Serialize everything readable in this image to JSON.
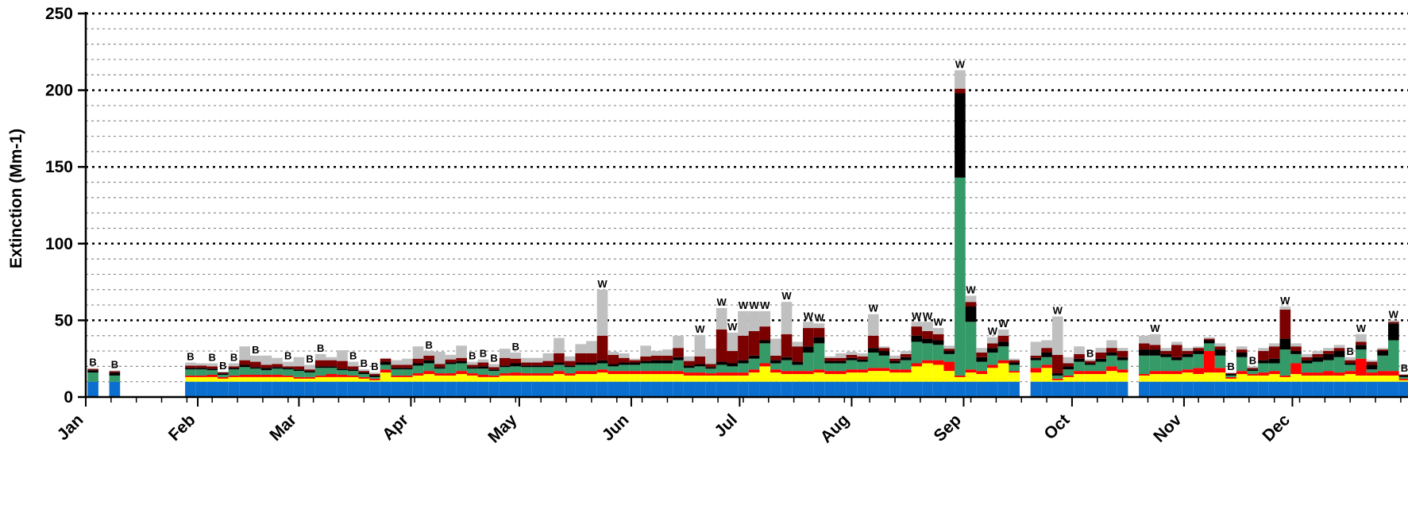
{
  "chart_data": {
    "type": "bar",
    "stacked": true,
    "title": "",
    "xlabel": "",
    "ylabel": "Extinction (Mm-1)",
    "ylim": [
      0,
      250
    ],
    "yticks": [
      0,
      50,
      100,
      150,
      200,
      250
    ],
    "grid": {
      "major_y": true,
      "minor_y_step": 10,
      "style": "dotted"
    },
    "legend": "none",
    "months": [
      "Jan",
      "Feb",
      "Mar",
      "Apr",
      "May",
      "Jun",
      "Jul",
      "Aug",
      "Sep",
      "Oct",
      "Nov",
      "Dec"
    ],
    "month_start_days": [
      1,
      32,
      60,
      91,
      121,
      152,
      182,
      213,
      244,
      274,
      305,
      335
    ],
    "sample_interval_days": 3,
    "series_colors": {
      "rayleigh": "#0a6fcf",
      "sulfate": "#ffff00",
      "nitrate": "#ff0000",
      "organic": "#349a67",
      "elemental_carbon": "#000000",
      "soil": "#7b0000",
      "coarse": "#c0c0c0"
    },
    "samples": [
      {
        "day": 3,
        "v": [
          10,
          0,
          0,
          6,
          1.5,
          0.8,
          0.5
        ],
        "flag": "B"
      },
      {
        "day": 9,
        "v": [
          10,
          0,
          0,
          4,
          2,
          0.8,
          0.5
        ],
        "flag": "B"
      },
      {
        "day": 30,
        "v": [
          10,
          3,
          1,
          4,
          1,
          1.5,
          2
        ],
        "flag": "B"
      },
      {
        "day": 33,
        "v": [
          10,
          3,
          1,
          4,
          1,
          1.5,
          1.5
        ]
      },
      {
        "day": 36,
        "v": [
          10,
          3,
          1.5,
          3,
          1,
          1.5,
          2
        ],
        "flag": "B"
      },
      {
        "day": 39,
        "v": [
          10,
          2,
          1,
          1.5,
          0.8,
          0.8,
          0.5
        ],
        "flag": "B"
      },
      {
        "day": 42,
        "v": [
          10,
          3,
          1,
          4,
          1,
          1,
          2
        ],
        "flag": "B"
      },
      {
        "day": 45,
        "v": [
          10,
          3,
          1.5,
          5,
          1.5,
          3,
          9
        ]
      },
      {
        "day": 48,
        "v": [
          10,
          3,
          1.5,
          4,
          1,
          3.5,
          4
        ],
        "flag": "B"
      },
      {
        "day": 51,
        "v": [
          10,
          3,
          1.5,
          3,
          1.5,
          2,
          6
        ]
      },
      {
        "day": 54,
        "v": [
          10,
          3,
          1.5,
          4,
          1,
          2,
          4
        ]
      },
      {
        "day": 57,
        "v": [
          10,
          3,
          1,
          4,
          1,
          1,
          3
        ],
        "flag": "B"
      },
      {
        "day": 60,
        "v": [
          10,
          2,
          1,
          4,
          1,
          2,
          6
        ]
      },
      {
        "day": 63,
        "v": [
          10,
          2,
          1,
          3,
          1,
          1,
          3
        ],
        "flag": "B"
      },
      {
        "day": 66,
        "v": [
          10,
          3,
          1,
          5,
          1,
          4,
          4
        ],
        "flag": "B"
      },
      {
        "day": 69,
        "v": [
          10,
          3,
          2,
          4,
          1,
          4,
          2
        ]
      },
      {
        "day": 72,
        "v": [
          10,
          3,
          1.5,
          3,
          1,
          5,
          7
        ]
      },
      {
        "day": 75,
        "v": [
          10,
          3,
          1,
          3,
          1,
          2,
          3
        ],
        "flag": "B"
      },
      {
        "day": 78,
        "v": [
          10,
          2,
          1,
          2,
          1,
          1,
          1
        ],
        "flag": "B"
      },
      {
        "day": 81,
        "v": [
          10,
          1,
          1,
          1,
          1,
          1,
          1
        ],
        "flag": "B"
      },
      {
        "day": 84,
        "v": [
          10,
          6,
          2,
          3,
          2,
          2,
          0.5
        ]
      },
      {
        "day": 87,
        "v": [
          10,
          3,
          1,
          4,
          1,
          2,
          3
        ]
      },
      {
        "day": 90,
        "v": [
          10,
          3,
          1,
          4,
          1,
          2,
          4
        ]
      },
      {
        "day": 93,
        "v": [
          10,
          4,
          1.5,
          5,
          1.5,
          3,
          8
        ]
      },
      {
        "day": 96,
        "v": [
          10,
          5,
          2,
          5,
          2,
          3,
          3
        ],
        "flag": "B"
      },
      {
        "day": 99,
        "v": [
          10,
          4,
          1.5,
          3,
          1,
          2,
          8
        ]
      },
      {
        "day": 102,
        "v": [
          10,
          4,
          1.5,
          6,
          1,
          2,
          3
        ]
      },
      {
        "day": 105,
        "v": [
          10,
          5,
          2,
          5,
          1.5,
          2,
          8
        ]
      },
      {
        "day": 108,
        "v": [
          10,
          4,
          1.5,
          3,
          1,
          1.5,
          2
        ],
        "flag": "B"
      },
      {
        "day": 111,
        "v": [
          10,
          3,
          1.5,
          4,
          1.5,
          2.5,
          2
        ],
        "flag": "B"
      },
      {
        "day": 114,
        "v": [
          10,
          3,
          1,
          3,
          1,
          1.5,
          2
        ],
        "flag": "B"
      },
      {
        "day": 117,
        "v": [
          10,
          4,
          1.5,
          4,
          1,
          5,
          6
        ]
      },
      {
        "day": 120,
        "v": [
          10,
          4,
          2,
          4,
          2,
          3,
          4
        ],
        "flag": "B"
      },
      {
        "day": 123,
        "v": [
          10,
          4,
          1.5,
          4,
          1,
          2,
          3
        ]
      },
      {
        "day": 126,
        "v": [
          10,
          4,
          1.5,
          4,
          1,
          2,
          3
        ]
      },
      {
        "day": 129,
        "v": [
          10,
          4,
          1.5,
          4,
          1,
          3,
          5
        ]
      },
      {
        "day": 132,
        "v": [
          10,
          5,
          2,
          4,
          1.5,
          6,
          10
        ]
      },
      {
        "day": 135,
        "v": [
          10,
          4,
          1.5,
          4,
          1,
          3,
          3
        ]
      },
      {
        "day": 138,
        "v": [
          10,
          5,
          2,
          4,
          1.5,
          6,
          6
        ]
      },
      {
        "day": 141,
        "v": [
          10,
          5,
          2,
          4,
          1.5,
          6,
          8
        ]
      },
      {
        "day": 144,
        "v": [
          10,
          6,
          2,
          4,
          2,
          16,
          30
        ],
        "flag": "W"
      },
      {
        "day": 147,
        "v": [
          10,
          5,
          2,
          3,
          1.5,
          6,
          2
        ]
      },
      {
        "day": 150,
        "v": [
          10,
          5,
          2,
          4,
          1.5,
          3,
          3
        ]
      },
      {
        "day": 153,
        "v": [
          10,
          5,
          2,
          4,
          1.5,
          1.5,
          1
        ]
      },
      {
        "day": 156,
        "v": [
          10,
          5,
          2,
          5,
          1.5,
          3,
          7
        ]
      },
      {
        "day": 159,
        "v": [
          10,
          5,
          2,
          5,
          2,
          3,
          3
        ]
      },
      {
        "day": 162,
        "v": [
          10,
          5,
          2,
          5,
          2,
          3,
          4
        ]
      },
      {
        "day": 165,
        "v": [
          10,
          5,
          2,
          7,
          2,
          6,
          8
        ]
      },
      {
        "day": 168,
        "v": [
          10,
          4,
          2,
          3,
          1.5,
          3,
          3
        ]
      },
      {
        "day": 171,
        "v": [
          10,
          4,
          2,
          4,
          1.5,
          5,
          14
        ],
        "flag": "W"
      },
      {
        "day": 174,
        "v": [
          10,
          4,
          1.5,
          3,
          1,
          2,
          10
        ]
      },
      {
        "day": 177,
        "v": [
          10,
          4,
          2,
          5,
          2,
          21,
          14
        ],
        "flag": "W"
      },
      {
        "day": 180,
        "v": [
          10,
          4,
          2,
          4,
          2,
          8,
          12
        ],
        "flag": "W"
      },
      {
        "day": 183,
        "v": [
          10,
          4,
          2,
          6,
          2,
          16,
          16
        ],
        "flag": "W"
      },
      {
        "day": 186,
        "v": [
          10,
          6,
          2,
          7,
          2,
          16,
          13
        ],
        "flag": "W"
      },
      {
        "day": 189,
        "v": [
          10,
          10,
          2,
          13,
          2,
          9,
          10
        ],
        "flag": "W"
      },
      {
        "day": 192,
        "v": [
          10,
          6,
          2,
          4,
          2,
          3,
          11
        ]
      },
      {
        "day": 195,
        "v": [
          10,
          5,
          2,
          7,
          2,
          15,
          21
        ],
        "flag": "W"
      },
      {
        "day": 198,
        "v": [
          10,
          5,
          2,
          4,
          2,
          10,
          3
        ]
      },
      {
        "day": 201,
        "v": [
          10,
          5,
          2,
          12,
          4,
          12,
          4
        ],
        "flag": "W"
      },
      {
        "day": 204,
        "v": [
          10,
          6,
          2,
          17,
          4,
          6,
          3
        ],
        "flag": "W"
      },
      {
        "day": 207,
        "v": [
          10,
          5,
          2,
          5,
          1.5,
          2,
          1
        ]
      },
      {
        "day": 210,
        "v": [
          10,
          5,
          2,
          5,
          1.5,
          2,
          3
        ]
      },
      {
        "day": 213,
        "v": [
          10,
          6,
          2,
          6,
          1.5,
          2,
          2
        ]
      },
      {
        "day": 216,
        "v": [
          10,
          6,
          2,
          5,
          1.5,
          2,
          2
        ]
      },
      {
        "day": 219,
        "v": [
          10,
          7,
          2,
          10,
          3,
          8,
          14
        ],
        "flag": "W"
      },
      {
        "day": 222,
        "v": [
          10,
          7,
          2,
          8,
          3,
          2,
          1
        ]
      },
      {
        "day": 225,
        "v": [
          10,
          6,
          2,
          4,
          1.5,
          1.5,
          2
        ]
      },
      {
        "day": 228,
        "v": [
          10,
          6,
          2,
          6,
          2,
          2,
          2
        ]
      },
      {
        "day": 231,
        "v": [
          10,
          10,
          2,
          14,
          4,
          6,
          3
        ],
        "flag": "W"
      },
      {
        "day": 234,
        "v": [
          10,
          12,
          2,
          11,
          3,
          5,
          6
        ],
        "flag": "W"
      },
      {
        "day": 237,
        "v": [
          10,
          11,
          3,
          10,
          3,
          4,
          4
        ],
        "flag": "W"
      },
      {
        "day": 240,
        "v": [
          10,
          7,
          6,
          5,
          2,
          1.5,
          2
        ]
      },
      {
        "day": 243,
        "v": [
          10,
          3,
          1,
          129,
          55,
          3,
          12
        ],
        "flag": "W"
      },
      {
        "day": 246,
        "v": [
          10,
          6,
          2,
          31,
          10,
          3,
          4
        ],
        "flag": "W"
      },
      {
        "day": 249,
        "v": [
          10,
          5,
          2,
          6,
          3,
          3,
          3
        ]
      },
      {
        "day": 252,
        "v": [
          10,
          9,
          2,
          8,
          3,
          3,
          4
        ],
        "flag": "W"
      },
      {
        "day": 255,
        "v": [
          10,
          12,
          2,
          9,
          3,
          4,
          4
        ],
        "flag": "W"
      },
      {
        "day": 258,
        "v": [
          10,
          6,
          1,
          4,
          1.5,
          1.5,
          1
        ]
      },
      {
        "day": 264,
        "v": [
          10,
          6,
          3,
          5,
          1.5,
          1.5,
          9
        ]
      },
      {
        "day": 267,
        "v": [
          10,
          9,
          2,
          5,
          3,
          3,
          5
        ]
      },
      {
        "day": 270,
        "v": [
          10,
          1,
          1,
          2,
          1.5,
          12,
          25
        ],
        "flag": "W"
      },
      {
        "day": 273,
        "v": [
          10,
          3,
          1,
          4,
          2,
          2,
          4
        ]
      },
      {
        "day": 276,
        "v": [
          10,
          5,
          2,
          6,
          2,
          3,
          5
        ]
      },
      {
        "day": 279,
        "v": [
          10,
          5,
          2,
          4,
          1,
          1.5,
          1
        ],
        "flag": "B"
      },
      {
        "day": 282,
        "v": [
          10,
          5,
          2,
          6,
          2,
          4,
          3
        ]
      },
      {
        "day": 285,
        "v": [
          10,
          7,
          3,
          7,
          2,
          3,
          5
        ]
      },
      {
        "day": 288,
        "v": [
          10,
          6,
          2,
          6,
          2,
          4,
          2
        ]
      },
      {
        "day": 294,
        "v": [
          10,
          4,
          1,
          12,
          4,
          4,
          5
        ]
      },
      {
        "day": 297,
        "v": [
          10,
          5,
          2,
          10,
          4,
          3,
          7
        ],
        "flag": "W"
      },
      {
        "day": 300,
        "v": [
          10,
          5,
          2,
          9,
          2,
          2,
          2
        ]
      },
      {
        "day": 303,
        "v": [
          10,
          5,
          2,
          7,
          2,
          8,
          2
        ]
      },
      {
        "day": 306,
        "v": [
          10,
          6,
          2,
          8,
          2,
          2,
          2
        ]
      },
      {
        "day": 309,
        "v": [
          10,
          5,
          4,
          9,
          2,
          2,
          1
        ]
      },
      {
        "day": 312,
        "v": [
          10,
          6,
          14,
          5,
          2,
          1,
          1
        ]
      },
      {
        "day": 315,
        "v": [
          10,
          6,
          3,
          8,
          4,
          2,
          2
        ]
      },
      {
        "day": 318,
        "v": [
          10,
          2,
          1,
          1,
          1,
          0.5,
          0.5
        ],
        "flag": "B"
      },
      {
        "day": 321,
        "v": [
          10,
          5,
          2,
          9,
          3,
          2,
          2
        ]
      },
      {
        "day": 324,
        "v": [
          10,
          4,
          1,
          2,
          1,
          1,
          1
        ],
        "flag": "B"
      },
      {
        "day": 327,
        "v": [
          10,
          4,
          2,
          6,
          2,
          6,
          2
        ]
      },
      {
        "day": 330,
        "v": [
          10,
          5,
          2,
          5,
          3,
          8,
          2
        ]
      },
      {
        "day": 333,
        "v": [
          10,
          3,
          1,
          17,
          7,
          19,
          2
        ],
        "flag": "W"
      },
      {
        "day": 336,
        "v": [
          10,
          5,
          7,
          6,
          2,
          3,
          2
        ]
      },
      {
        "day": 339,
        "v": [
          10,
          4,
          2,
          6,
          2,
          2,
          2
        ]
      },
      {
        "day": 342,
        "v": [
          10,
          4,
          2,
          7,
          3,
          2,
          2
        ]
      },
      {
        "day": 345,
        "v": [
          10,
          4,
          3,
          7,
          4,
          2,
          2
        ]
      },
      {
        "day": 348,
        "v": [
          10,
          4,
          2,
          10,
          4,
          2,
          2
        ]
      },
      {
        "day": 351,
        "v": [
          10,
          5,
          2,
          4,
          1,
          2,
          2
        ],
        "flag": "B"
      },
      {
        "day": 354,
        "v": [
          10,
          4,
          11,
          6,
          3,
          2,
          5
        ],
        "flag": "W"
      },
      {
        "day": 357,
        "v": [
          10,
          4,
          2,
          2,
          3,
          2,
          1
        ]
      },
      {
        "day": 360,
        "v": [
          10,
          4,
          3,
          10,
          3,
          1,
          1
        ]
      },
      {
        "day": 363,
        "v": [
          10,
          4,
          3,
          20,
          11,
          1,
          1
        ],
        "flag": "W"
      },
      {
        "day": 366,
        "v": [
          10,
          1,
          1,
          1,
          1,
          0.5,
          0.5
        ],
        "flag": "B"
      },
      {
        "day": 369,
        "v": [
          10,
          2,
          1,
          5,
          4,
          1,
          1
        ]
      }
    ]
  }
}
